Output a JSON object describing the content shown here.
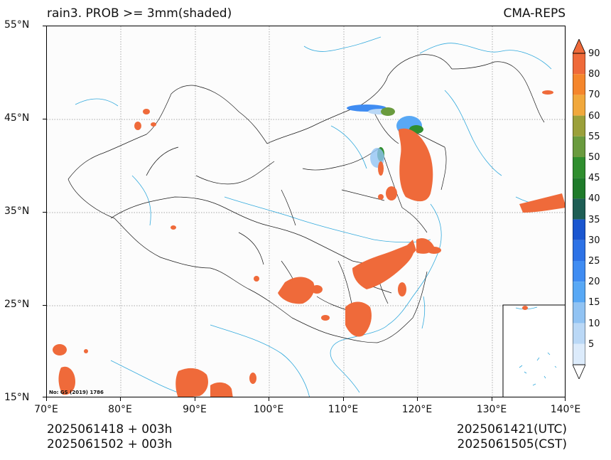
{
  "title_left": "rain3. PROB >= 3mm(shaded)",
  "title_right": "CMA-REPS",
  "map": {
    "lon_ticks": [
      "70°E",
      "80°E",
      "90°E",
      "100°E",
      "110°E",
      "120°E",
      "130°E",
      "140°E"
    ],
    "lat_ticks": [
      "55°N",
      "45°N",
      "35°N",
      "25°N",
      "15°N"
    ],
    "extent": {
      "lon": [
        70,
        140
      ],
      "lat": [
        15,
        55
      ]
    },
    "grid": true,
    "source_note": "No: GS (2019) 1786",
    "inset_map": true
  },
  "colorbar": {
    "levels": [
      "90",
      "80",
      "70",
      "60",
      "55",
      "50",
      "45",
      "40",
      "35",
      "30",
      "25",
      "20",
      "15",
      "10",
      "5"
    ],
    "colors": [
      "#ef6a3a",
      "#f5862c",
      "#f1a83c",
      "#9ba03a",
      "#6a9b3e",
      "#2f8e2e",
      "#1f7b2a",
      "#1e5e55",
      "#1a56d0",
      "#2d72e6",
      "#3f8cf2",
      "#58a8f5",
      "#91c3f3",
      "#bad8f6",
      "#dcebfb"
    ],
    "extend_top_color": "#ef6a3a",
    "extend_bottom_color": "#ffffff"
  },
  "footer": {
    "init_utc": "2025061418  +  003h",
    "init_cst": "2025061502  +  003h",
    "valid_utc": "2025061421(UTC)",
    "valid_cst": "2025061505(CST)"
  }
}
